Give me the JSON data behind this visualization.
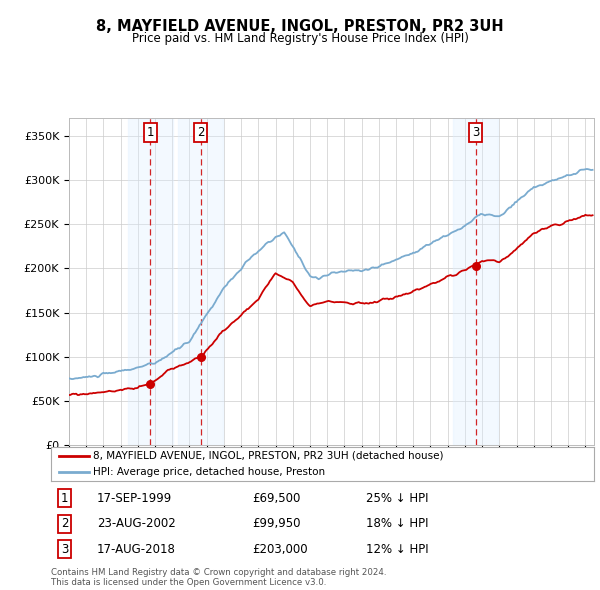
{
  "title": "8, MAYFIELD AVENUE, INGOL, PRESTON, PR2 3UH",
  "subtitle": "Price paid vs. HM Land Registry's House Price Index (HPI)",
  "transactions": [
    {
      "num": 1,
      "date": "17-SEP-1999",
      "price": 69500,
      "year": 1999.72,
      "label": "25% ↓ HPI"
    },
    {
      "num": 2,
      "date": "23-AUG-2002",
      "price": 99950,
      "year": 2002.64,
      "label": "18% ↓ HPI"
    },
    {
      "num": 3,
      "date": "17-AUG-2018",
      "price": 203000,
      "year": 2018.63,
      "label": "12% ↓ HPI"
    }
  ],
  "legend_entry1": "8, MAYFIELD AVENUE, INGOL, PRESTON, PR2 3UH (detached house)",
  "legend_entry2": "HPI: Average price, detached house, Preston",
  "footer": "Contains HM Land Registry data © Crown copyright and database right 2024.\nThis data is licensed under the Open Government Licence v3.0.",
  "ylim": [
    0,
    370000
  ],
  "yticks": [
    0,
    50000,
    100000,
    150000,
    200000,
    250000,
    300000,
    350000
  ],
  "red_color": "#cc0000",
  "blue_color": "#7aabcf",
  "shade_color": "#ddeeff",
  "background_color": "#ffffff",
  "grid_color": "#cccccc",
  "shade_alpha": 0.35
}
